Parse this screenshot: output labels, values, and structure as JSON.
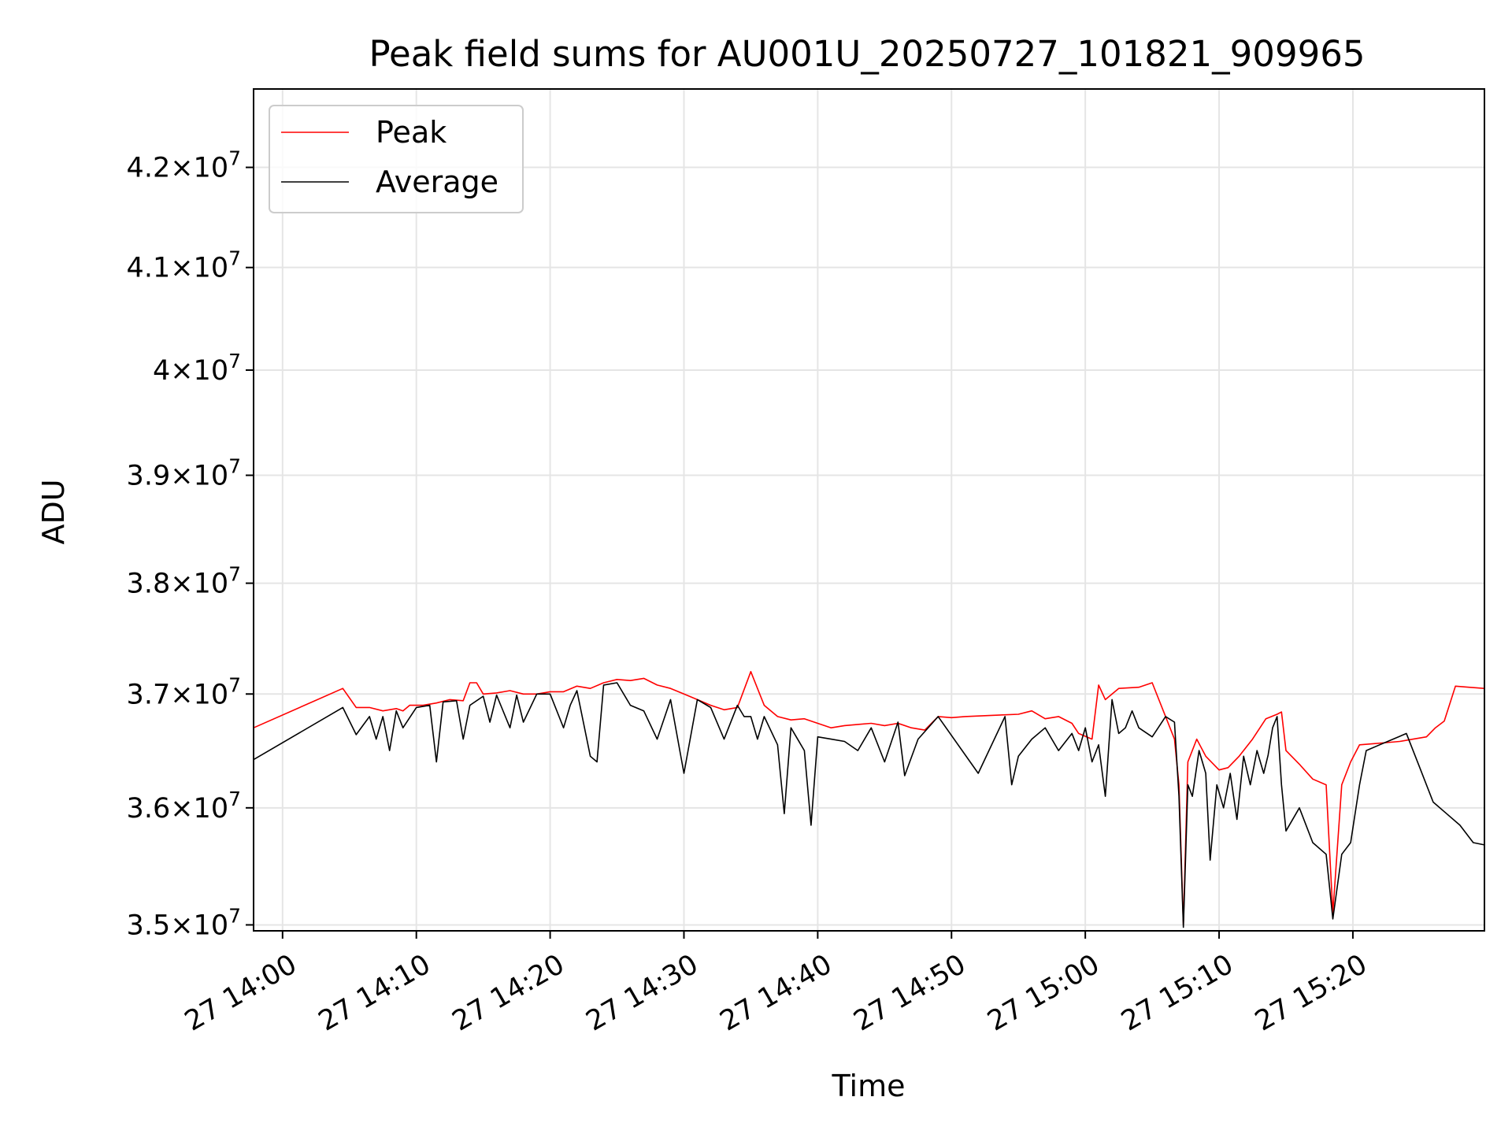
{
  "chart_data": {
    "type": "line",
    "title": "Peak field sums for AU001U_20250727_101821_909965",
    "xlabel": "Time",
    "ylabel": "ADU",
    "x_scale": "time",
    "y_scale": "log",
    "xlim": [
      "27 13:57:50",
      "27 15:29:50"
    ],
    "ylim": [
      34950000,
      42800000
    ],
    "grid": true,
    "legend_position": "upper left",
    "x_ticks": [
      {
        "t": "27 14:00",
        "label": "27 14:00"
      },
      {
        "t": "27 14:10",
        "label": "27 14:10"
      },
      {
        "t": "27 14:20",
        "label": "27 14:20"
      },
      {
        "t": "27 14:30",
        "label": "27 14:30"
      },
      {
        "t": "27 14:40",
        "label": "27 14:40"
      },
      {
        "t": "27 14:50",
        "label": "27 14:50"
      },
      {
        "t": "27 15:00",
        "label": "27 15:00"
      },
      {
        "t": "27 15:10",
        "label": "27 15:10"
      },
      {
        "t": "27 15:20",
        "label": "27 15:20"
      }
    ],
    "y_ticks": [
      {
        "value": 35000000,
        "mantissa": "3.5",
        "exp": "7"
      },
      {
        "value": 36000000,
        "mantissa": "3.6",
        "exp": "7"
      },
      {
        "value": 37000000,
        "mantissa": "3.7",
        "exp": "7"
      },
      {
        "value": 38000000,
        "mantissa": "3.8",
        "exp": "7"
      },
      {
        "value": 39000000,
        "mantissa": "3.9",
        "exp": "7"
      },
      {
        "value": 40000000,
        "mantissa": "4",
        "exp": "7"
      },
      {
        "value": 41000000,
        "mantissa": "4.1",
        "exp": "7"
      },
      {
        "value": 42000000,
        "mantissa": "4.2",
        "exp": "7"
      }
    ],
    "series": [
      {
        "name": "Peak",
        "color": "#ff0000",
        "points": [
          [
            "27 13:57:50",
            36700000
          ],
          [
            "27 14:04:30",
            37050000
          ],
          [
            "27 14:05:30",
            36880000
          ],
          [
            "27 14:06:30",
            36880000
          ],
          [
            "27 14:07:30",
            36850000
          ],
          [
            "27 14:08:30",
            36870000
          ],
          [
            "27 14:09:00",
            36850000
          ],
          [
            "27 14:09:30",
            36900000
          ],
          [
            "27 14:10:30",
            36900000
          ],
          [
            "27 14:11:30",
            36920000
          ],
          [
            "27 14:12:30",
            36950000
          ],
          [
            "27 14:13:30",
            36940000
          ],
          [
            "27 14:14:00",
            37100000
          ],
          [
            "27 14:14:30",
            37100000
          ],
          [
            "27 14:15:00",
            37000000
          ],
          [
            "27 14:16:00",
            37010000
          ],
          [
            "27 14:17:00",
            37030000
          ],
          [
            "27 14:18:00",
            37000000
          ],
          [
            "27 14:19:00",
            37000000
          ],
          [
            "27 14:20:00",
            37020000
          ],
          [
            "27 14:21:00",
            37020000
          ],
          [
            "27 14:22:00",
            37070000
          ],
          [
            "27 14:23:00",
            37050000
          ],
          [
            "27 14:24:00",
            37100000
          ],
          [
            "27 14:25:00",
            37130000
          ],
          [
            "27 14:26:00",
            37120000
          ],
          [
            "27 14:27:00",
            37140000
          ],
          [
            "27 14:28:00",
            37080000
          ],
          [
            "27 14:29:00",
            37050000
          ],
          [
            "27 14:30:00",
            37000000
          ],
          [
            "27 14:31:00",
            36950000
          ],
          [
            "27 14:32:00",
            36900000
          ],
          [
            "27 14:33:00",
            36860000
          ],
          [
            "27 14:34:00",
            36880000
          ],
          [
            "27 14:35:00",
            37200000
          ],
          [
            "27 14:36:00",
            36900000
          ],
          [
            "27 14:37:00",
            36800000
          ],
          [
            "27 14:38:00",
            36770000
          ],
          [
            "27 14:39:00",
            36780000
          ],
          [
            "27 14:40:00",
            36740000
          ],
          [
            "27 14:41:00",
            36700000
          ],
          [
            "27 14:42:00",
            36720000
          ],
          [
            "27 14:43:00",
            36730000
          ],
          [
            "27 14:44:00",
            36740000
          ],
          [
            "27 14:45:00",
            36720000
          ],
          [
            "27 14:46:00",
            36740000
          ],
          [
            "27 14:47:00",
            36700000
          ],
          [
            "27 14:48:00",
            36680000
          ],
          [
            "27 14:49:00",
            36800000
          ],
          [
            "27 14:50:00",
            36790000
          ],
          [
            "27 14:51:00",
            36800000
          ],
          [
            "27 14:53:00",
            36810000
          ],
          [
            "27 14:55:00",
            36820000
          ],
          [
            "27 14:56:00",
            36850000
          ],
          [
            "27 14:57:00",
            36780000
          ],
          [
            "27 14:58:00",
            36800000
          ],
          [
            "27 14:59:00",
            36740000
          ],
          [
            "27 14:59:30",
            36650000
          ],
          [
            "27 15:00:30",
            36600000
          ],
          [
            "27 15:01:00",
            37080000
          ],
          [
            "27 15:01:30",
            36950000
          ],
          [
            "27 15:02:30",
            37050000
          ],
          [
            "27 15:04:00",
            37060000
          ],
          [
            "27 15:05:00",
            37100000
          ],
          [
            "27 15:06:00",
            36800000
          ],
          [
            "27 15:06:40",
            36600000
          ],
          [
            "27 15:07:00",
            36200000
          ],
          [
            "27 15:07:20",
            35000000
          ],
          [
            "27 15:07:40",
            36400000
          ],
          [
            "27 15:08:20",
            36600000
          ],
          [
            "27 15:09:00",
            36450000
          ],
          [
            "27 15:10:00",
            36330000
          ],
          [
            "27 15:10:40",
            36350000
          ],
          [
            "27 15:11:30",
            36450000
          ],
          [
            "27 15:12:30",
            36600000
          ],
          [
            "27 15:13:30",
            36780000
          ],
          [
            "27 15:14:20",
            36820000
          ],
          [
            "27 15:14:40",
            36840000
          ],
          [
            "27 15:15:00",
            36500000
          ],
          [
            "27 15:16:00",
            36380000
          ],
          [
            "27 15:17:00",
            36250000
          ],
          [
            "27 15:18:00",
            36200000
          ],
          [
            "27 15:18:30",
            35100000
          ],
          [
            "27 15:19:10",
            36200000
          ],
          [
            "27 15:19:50",
            36400000
          ],
          [
            "27 15:20:30",
            36550000
          ],
          [
            "27 15:21:30",
            36560000
          ],
          [
            "27 15:22:30",
            36570000
          ],
          [
            "27 15:23:30",
            36580000
          ],
          [
            "27 15:24:30",
            36600000
          ],
          [
            "27 15:25:30",
            36620000
          ],
          [
            "27 15:26:10",
            36700000
          ],
          [
            "27 15:26:50",
            36760000
          ],
          [
            "27 15:27:40",
            37070000
          ],
          [
            "27 15:28:40",
            37060000
          ],
          [
            "27 15:29:50",
            37050000
          ]
        ]
      },
      {
        "name": "Average",
        "color": "#000000",
        "points": [
          [
            "27 13:57:50",
            36420000
          ],
          [
            "27 14:04:30",
            36880000
          ],
          [
            "27 14:05:30",
            36640000
          ],
          [
            "27 14:06:00",
            36720000
          ],
          [
            "27 14:06:30",
            36800000
          ],
          [
            "27 14:07:00",
            36600000
          ],
          [
            "27 14:07:30",
            36800000
          ],
          [
            "27 14:08:00",
            36500000
          ],
          [
            "27 14:08:30",
            36850000
          ],
          [
            "27 14:09:00",
            36700000
          ],
          [
            "27 14:10:00",
            36880000
          ],
          [
            "27 14:11:00",
            36900000
          ],
          [
            "27 14:11:30",
            36400000
          ],
          [
            "27 14:12:00",
            36930000
          ],
          [
            "27 14:13:00",
            36940000
          ],
          [
            "27 14:13:30",
            36600000
          ],
          [
            "27 14:14:00",
            36900000
          ],
          [
            "27 14:15:00",
            36980000
          ],
          [
            "27 14:15:30",
            36750000
          ],
          [
            "27 14:16:00",
            36990000
          ],
          [
            "27 14:17:00",
            36700000
          ],
          [
            "27 14:17:30",
            36990000
          ],
          [
            "27 14:18:00",
            36750000
          ],
          [
            "27 14:19:00",
            37000000
          ],
          [
            "27 14:20:00",
            37000000
          ],
          [
            "27 14:21:00",
            36700000
          ],
          [
            "27 14:21:30",
            36900000
          ],
          [
            "27 14:22:00",
            37030000
          ],
          [
            "27 14:23:00",
            36450000
          ],
          [
            "27 14:23:30",
            36400000
          ],
          [
            "27 14:24:00",
            37080000
          ],
          [
            "27 14:25:00",
            37100000
          ],
          [
            "27 14:26:00",
            36900000
          ],
          [
            "27 14:27:00",
            36850000
          ],
          [
            "27 14:28:00",
            36600000
          ],
          [
            "27 14:29:00",
            36950000
          ],
          [
            "27 14:30:00",
            36300000
          ],
          [
            "27 14:31:00",
            36950000
          ],
          [
            "27 14:32:00",
            36880000
          ],
          [
            "27 14:33:00",
            36600000
          ],
          [
            "27 14:34:00",
            36900000
          ],
          [
            "27 14:34:30",
            36800000
          ],
          [
            "27 14:35:00",
            36800000
          ],
          [
            "27 14:35:30",
            36600000
          ],
          [
            "27 14:36:00",
            36800000
          ],
          [
            "27 14:37:00",
            36550000
          ],
          [
            "27 14:37:30",
            35950000
          ],
          [
            "27 14:38:00",
            36700000
          ],
          [
            "27 14:39:00",
            36500000
          ],
          [
            "27 14:39:30",
            35850000
          ],
          [
            "27 14:40:00",
            36620000
          ],
          [
            "27 14:41:00",
            36600000
          ],
          [
            "27 14:42:00",
            36580000
          ],
          [
            "27 14:43:00",
            36500000
          ],
          [
            "27 14:44:00",
            36700000
          ],
          [
            "27 14:45:00",
            36400000
          ],
          [
            "27 14:46:00",
            36750000
          ],
          [
            "27 14:46:30",
            36280000
          ],
          [
            "27 14:47:30",
            36600000
          ],
          [
            "27 14:49:00",
            36800000
          ],
          [
            "27 14:52:00",
            36300000
          ],
          [
            "27 14:54:00",
            36800000
          ],
          [
            "27 14:54:30",
            36200000
          ],
          [
            "27 14:55:00",
            36450000
          ],
          [
            "27 14:56:00",
            36600000
          ],
          [
            "27 14:57:00",
            36700000
          ],
          [
            "27 14:58:00",
            36500000
          ],
          [
            "27 14:59:00",
            36650000
          ],
          [
            "27 14:59:30",
            36500000
          ],
          [
            "27 15:00:00",
            36700000
          ],
          [
            "27 15:00:30",
            36400000
          ],
          [
            "27 15:01:00",
            36550000
          ],
          [
            "27 15:01:30",
            36100000
          ],
          [
            "27 15:02:00",
            36950000
          ],
          [
            "27 15:02:30",
            36650000
          ],
          [
            "27 15:03:00",
            36700000
          ],
          [
            "27 15:03:30",
            36850000
          ],
          [
            "27 15:04:00",
            36700000
          ],
          [
            "27 15:05:00",
            36620000
          ],
          [
            "27 15:06:00",
            36800000
          ],
          [
            "27 15:06:40",
            36750000
          ],
          [
            "27 15:07:00",
            36100000
          ],
          [
            "27 15:07:20",
            34980000
          ],
          [
            "27 15:07:40",
            36200000
          ],
          [
            "27 15:08:00",
            36100000
          ],
          [
            "27 15:08:30",
            36500000
          ],
          [
            "27 15:09:00",
            36300000
          ],
          [
            "27 15:09:20",
            35550000
          ],
          [
            "27 15:09:50",
            36200000
          ],
          [
            "27 15:10:20",
            36000000
          ],
          [
            "27 15:10:50",
            36300000
          ],
          [
            "27 15:11:20",
            35900000
          ],
          [
            "27 15:11:50",
            36450000
          ],
          [
            "27 15:12:20",
            36200000
          ],
          [
            "27 15:12:50",
            36500000
          ],
          [
            "27 15:13:20",
            36300000
          ],
          [
            "27 15:13:40",
            36460000
          ],
          [
            "27 15:14:00",
            36700000
          ],
          [
            "27 15:14:20",
            36800000
          ],
          [
            "27 15:14:40",
            36200000
          ],
          [
            "27 15:15:00",
            35800000
          ],
          [
            "27 15:16:00",
            36000000
          ],
          [
            "27 15:17:00",
            35700000
          ],
          [
            "27 15:18:00",
            35600000
          ],
          [
            "27 15:18:30",
            35050000
          ],
          [
            "27 15:19:10",
            35600000
          ],
          [
            "27 15:19:50",
            35700000
          ],
          [
            "27 15:20:30",
            36200000
          ],
          [
            "27 15:21:00",
            36500000
          ],
          [
            "27 15:22:00",
            36550000
          ],
          [
            "27 15:23:00",
            36600000
          ],
          [
            "27 15:24:00",
            36650000
          ],
          [
            "27 15:25:00",
            36350000
          ],
          [
            "27 15:26:00",
            36050000
          ],
          [
            "27 15:27:00",
            35950000
          ],
          [
            "27 15:28:00",
            35850000
          ],
          [
            "27 15:29:00",
            35700000
          ],
          [
            "27 15:29:50",
            35680000
          ]
        ]
      }
    ]
  }
}
